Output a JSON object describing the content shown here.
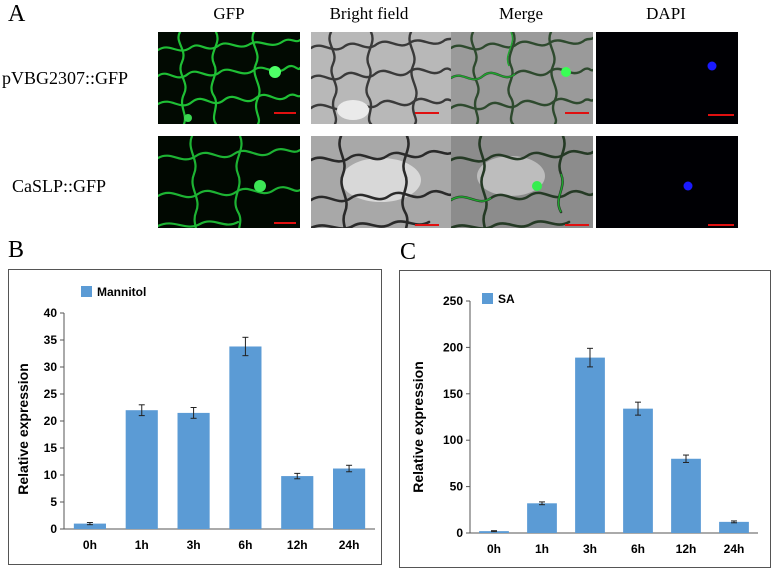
{
  "figure_a": {
    "letter": "A",
    "columns": [
      "GFP",
      "Bright field",
      "Merge",
      "DAPI"
    ],
    "rows": [
      "pVBG2307::GFP",
      "CaSLP::GFP"
    ],
    "colors": {
      "gfp": "#1fd43a",
      "dapi": "#1a1aff",
      "scale_bar": "#e01010"
    }
  },
  "chart_data": [
    {
      "letter": "B",
      "type": "bar",
      "categories": [
        "0h",
        "1h",
        "3h",
        "6h",
        "12h",
        "24h"
      ],
      "series": [
        {
          "name": "Mannitol",
          "values": [
            1.0,
            22.0,
            21.5,
            33.8,
            9.8,
            11.2
          ],
          "errors": [
            0.2,
            1.0,
            1.0,
            1.7,
            0.5,
            0.6
          ]
        }
      ],
      "title": "",
      "xlabel": "",
      "ylabel": "Relative expression",
      "ylim": [
        0,
        40
      ],
      "yticks": [
        0,
        5,
        10,
        15,
        20,
        25,
        30,
        35,
        40
      ],
      "grid": false,
      "legend": "top-left",
      "bar_color": "#5b9bd5"
    },
    {
      "letter": "C",
      "type": "bar",
      "categories": [
        "0h",
        "1h",
        "3h",
        "6h",
        "12h",
        "24h"
      ],
      "series": [
        {
          "name": "SA",
          "values": [
            2,
            32,
            189,
            134,
            80,
            12
          ],
          "errors": [
            0.5,
            1.5,
            10,
            7,
            4,
            1
          ]
        }
      ],
      "title": "",
      "xlabel": "",
      "ylabel": "Relative expression",
      "ylim": [
        0,
        250
      ],
      "yticks": [
        0,
        50,
        100,
        150,
        200,
        250
      ],
      "grid": false,
      "legend": "top-left",
      "bar_color": "#5b9bd5"
    }
  ]
}
